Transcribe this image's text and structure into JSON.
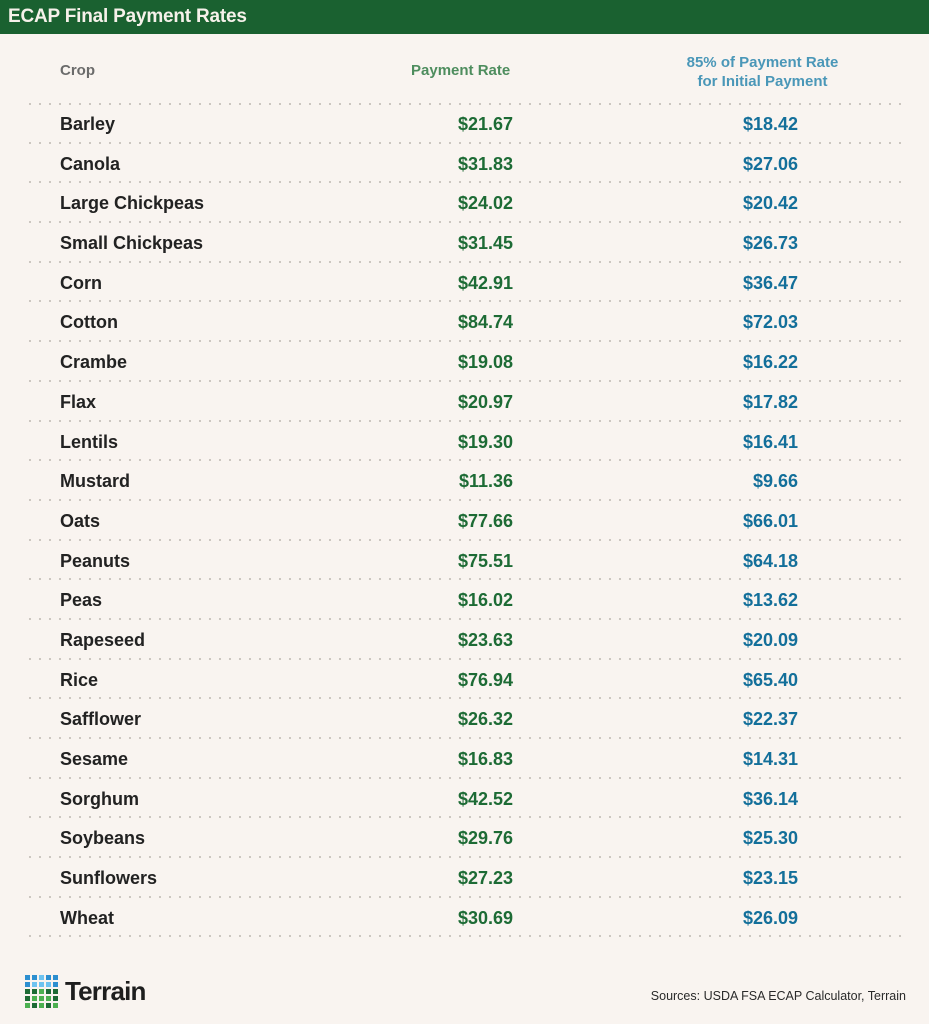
{
  "title": "ECAP Final Payment Rates",
  "colors": {
    "title_bg": "#1a6130",
    "background": "#f9f4f0",
    "payment_rate": "#1d6b35",
    "payment_rate_header": "#4e8d5e",
    "initial_payment": "#136f9a",
    "initial_payment_header": "#4a97b8"
  },
  "headers": {
    "crop": "Crop",
    "payment_rate": "Payment Rate",
    "initial_line1": "85% of Payment Rate",
    "initial_line2": "for Initial Payment"
  },
  "rows": [
    {
      "crop": "Barley",
      "rate": "$21.67",
      "initial": "$18.42"
    },
    {
      "crop": "Canola",
      "rate": "$31.83",
      "initial": "$27.06"
    },
    {
      "crop": "Large Chickpeas",
      "rate": "$24.02",
      "initial": "$20.42"
    },
    {
      "crop": "Small Chickpeas",
      "rate": "$31.45",
      "initial": "$26.73"
    },
    {
      "crop": "Corn",
      "rate": "$42.91",
      "initial": "$36.47"
    },
    {
      "crop": "Cotton",
      "rate": "$84.74",
      "initial": "$72.03"
    },
    {
      "crop": "Crambe",
      "rate": "$19.08",
      "initial": "$16.22"
    },
    {
      "crop": "Flax",
      "rate": "$20.97",
      "initial": "$17.82"
    },
    {
      "crop": "Lentils",
      "rate": "$19.30",
      "initial": "$16.41"
    },
    {
      "crop": "Mustard",
      "rate": "$11.36",
      "initial": "$9.66"
    },
    {
      "crop": "Oats",
      "rate": "$77.66",
      "initial": "$66.01"
    },
    {
      "crop": "Peanuts",
      "rate": "$75.51",
      "initial": "$64.18"
    },
    {
      "crop": "Peas",
      "rate": "$16.02",
      "initial": "$13.62"
    },
    {
      "crop": "Rapeseed",
      "rate": "$23.63",
      "initial": "$20.09"
    },
    {
      "crop": "Rice",
      "rate": "$76.94",
      "initial": "$65.40"
    },
    {
      "crop": "Safflower",
      "rate": "$26.32",
      "initial": "$22.37"
    },
    {
      "crop": "Sesame",
      "rate": "$16.83",
      "initial": "$14.31"
    },
    {
      "crop": "Sorghum",
      "rate": "$42.52",
      "initial": "$36.14"
    },
    {
      "crop": "Soybeans",
      "rate": "$29.76",
      "initial": "$25.30"
    },
    {
      "crop": "Sunflowers",
      "rate": "$27.23",
      "initial": "$23.15"
    },
    {
      "crop": "Wheat",
      "rate": "$30.69",
      "initial": "$26.09"
    }
  ],
  "footer": {
    "logo_text": "Terrain",
    "logo_icon": "dot-grid-logo-icon",
    "logo_grid_colors": [
      [
        "#2d8fd0",
        "#2d8fd0",
        "#6ec3f0",
        "#2d8fd0",
        "#2d8fd0"
      ],
      [
        "#2d8fd0",
        "#6ec3f0",
        "#6ec3f0",
        "#6ec3f0",
        "#2d8fd0"
      ],
      [
        "#1d6b35",
        "#1d6b35",
        "#4cb050",
        "#1d6b35",
        "#1d6b35"
      ],
      [
        "#1d6b35",
        "#4cb050",
        "#4cb050",
        "#4cb050",
        "#1d6b35"
      ],
      [
        "#4cb050",
        "#1d6b35",
        "#4cb050",
        "#1d6b35",
        "#4cb050"
      ]
    ],
    "sources": "Sources: USDA FSA ECAP Calculator, Terrain"
  },
  "chart_data": {
    "type": "table",
    "title": "ECAP Final Payment Rates",
    "columns": [
      "Crop",
      "Payment Rate",
      "85% of Payment Rate for Initial Payment"
    ],
    "categories": [
      "Barley",
      "Canola",
      "Large Chickpeas",
      "Small Chickpeas",
      "Corn",
      "Cotton",
      "Crambe",
      "Flax",
      "Lentils",
      "Mustard",
      "Oats",
      "Peanuts",
      "Peas",
      "Rapeseed",
      "Rice",
      "Safflower",
      "Sesame",
      "Sorghum",
      "Soybeans",
      "Sunflowers",
      "Wheat"
    ],
    "series": [
      {
        "name": "Payment Rate",
        "values": [
          21.67,
          31.83,
          24.02,
          31.45,
          42.91,
          84.74,
          19.08,
          20.97,
          19.3,
          11.36,
          77.66,
          75.51,
          16.02,
          23.63,
          76.94,
          26.32,
          16.83,
          42.52,
          29.76,
          27.23,
          30.69
        ]
      },
      {
        "name": "85% of Payment Rate for Initial Payment",
        "values": [
          18.42,
          27.06,
          20.42,
          26.73,
          36.47,
          72.03,
          16.22,
          17.82,
          16.41,
          9.66,
          66.01,
          64.18,
          13.62,
          20.09,
          65.4,
          22.37,
          14.31,
          36.14,
          25.3,
          23.15,
          26.09
        ]
      }
    ],
    "units": "USD",
    "source": "Sources: USDA FSA ECAP Calculator, Terrain"
  }
}
